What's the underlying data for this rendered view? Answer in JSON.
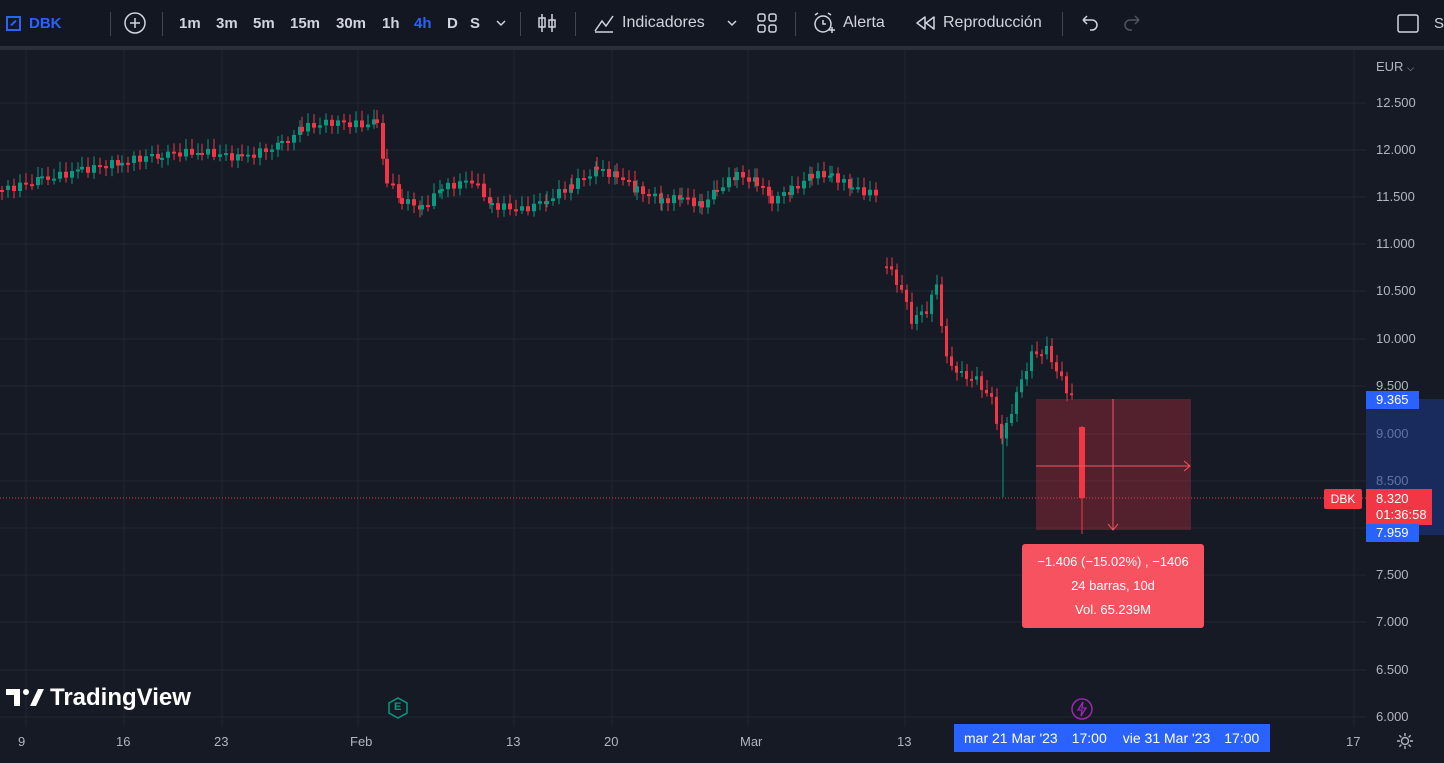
{
  "toolbar": {
    "symbol": "DBK",
    "intervals": [
      "1m",
      "3m",
      "5m",
      "15m",
      "30m",
      "1h",
      "4h",
      "D",
      "S"
    ],
    "active_interval": "4h",
    "indicators_label": "Indicadores",
    "alert_label": "Alerta",
    "replay_label": "Reproducción",
    "cut_label": "S"
  },
  "price_scale": {
    "currency": "EUR",
    "ticks": [
      "12.500",
      "12.000",
      "11.500",
      "11.000",
      "10.500",
      "10.000",
      "9.500",
      "9.000",
      "8.500",
      "8.000",
      "7.500",
      "7.000",
      "6.500",
      "6.000"
    ],
    "top_price": "9.365",
    "last_price": "8.320",
    "countdown": "01:36:58",
    "bottom_price": "7.959"
  },
  "time_scale": {
    "ticks": [
      "9",
      "16",
      "23",
      "Feb",
      "13",
      "20",
      "Mar",
      "13",
      "17"
    ],
    "range_start": "mar 21 Mar '23",
    "range_start_time": "17:00",
    "range_end": "vie 31 Mar '23",
    "range_end_time": "17:00"
  },
  "measure": {
    "line1": "−1.406 (−15.02%) , −1406",
    "line2": "24 barras, 10d",
    "line3": "Vol. 65.239M"
  },
  "series_label": "DBK",
  "logo_text": "TradingView",
  "earnings_badge": "E",
  "colors": {
    "up": "#089981",
    "down": "#f23645",
    "accent": "#2962ff",
    "measure": "#f7525f"
  }
}
